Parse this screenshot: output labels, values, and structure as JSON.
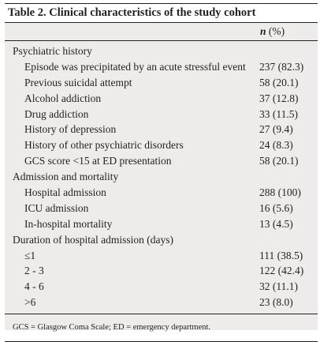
{
  "table": {
    "title": "Table 2. Clinical characteristics of the study cohort",
    "col_header_n": "n",
    "col_header_pct": " (%)",
    "sections": [
      {
        "label": "Psychiatric history",
        "rows": [
          {
            "label": "Episode was precipitated by an acute stressful event",
            "value": "237 (82.3)"
          },
          {
            "label": "Previous suicidal attempt",
            "value": "58 (20.1)"
          },
          {
            "label": "Alcohol addiction",
            "value": "37 (12.8)"
          },
          {
            "label": "Drug addiction",
            "value": "33 (11.5)"
          },
          {
            "label": "History of depression",
            "value": "27 (9.4)"
          },
          {
            "label": "History of other psychiatric disorders",
            "value": "24 (8.3)"
          },
          {
            "label": "GCS score <15 at ED presentation",
            "value": "58 (20.1)"
          }
        ]
      },
      {
        "label": "Admission and mortality",
        "rows": [
          {
            "label": "Hospital admission",
            "value": "288 (100)"
          },
          {
            "label": "ICU admission",
            "value": "16 (5.6)"
          },
          {
            "label": "In-hospital mortality",
            "value": "13 (4.5)"
          }
        ]
      },
      {
        "label": "Duration of hospital admission (days)",
        "rows": [
          {
            "label": "≤1",
            "value": "111 (38.5)"
          },
          {
            "label": "2 - 3",
            "value": "122 (42.4)"
          },
          {
            "label": "4 - 6",
            "value": "32 (11.1)"
          },
          {
            "label": ">6",
            "value": "23 (8.0)"
          }
        ]
      }
    ],
    "footnote": "GCS = Glasgow Coma Scale; ED = emergency department."
  }
}
